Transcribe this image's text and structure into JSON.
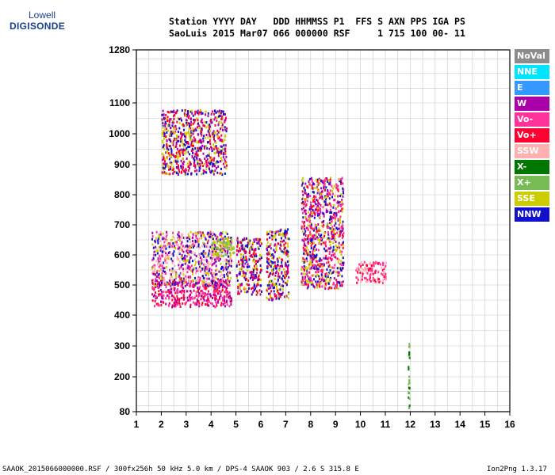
{
  "logo": {
    "top": "Lowell",
    "bottom": "DIGISONDE"
  },
  "header": {
    "line1": "Station YYYY DAY   DDD HHMMSS P1  FFS S AXN PPS IGA PS",
    "line2": "SaoLuis 2015 Mar07 066 000000 RSF     1 715 100 00- 11"
  },
  "footer": {
    "left": "SAAOK_2015066000000.RSF / 300fx256h 50 kHz 5.0 km / DPS-4 SAAOK 903 / 2.6 S 315.8 E",
    "right": "Ion2Png 1.3.17"
  },
  "legend": [
    {
      "label": "NoVal",
      "color": "#8c8c8c"
    },
    {
      "label": "NNE",
      "color": "#00e5ff"
    },
    {
      "label": "E",
      "color": "#3399ff"
    },
    {
      "label": "W",
      "color": "#aa00aa"
    },
    {
      "label": "Vo-",
      "color": "#ff3399"
    },
    {
      "label": "Vo+",
      "color": "#ff0033"
    },
    {
      "label": "SSW",
      "color": "#ffb0b0"
    },
    {
      "label": "X-",
      "color": "#007700"
    },
    {
      "label": "X+",
      "color": "#77bb55"
    },
    {
      "label": "SSE",
      "color": "#cccc00"
    },
    {
      "label": "NNW",
      "color": "#1111cc"
    }
  ],
  "chart_data": {
    "type": "scatter",
    "title": "",
    "xlabel": "",
    "ylabel": "",
    "xlim": [
      1,
      16
    ],
    "ylim": [
      80,
      1280
    ],
    "xticks": [
      "1",
      "2",
      "3",
      "4",
      "5",
      "6",
      "7",
      "8",
      "9",
      "10",
      "11",
      "12",
      "13",
      "14",
      "15",
      "16"
    ],
    "yticks": [
      "80",
      "200",
      "300",
      "400",
      "500",
      "600",
      "700",
      "800",
      "900",
      "1000",
      "1100",
      "1280"
    ],
    "yscale": "nonlinear (ionogram height scale)",
    "grid": true,
    "clusters": [
      {
        "x": [
          1.6,
          4.8
        ],
        "y": [
          430,
          520
        ],
        "colors": [
          "Vo+",
          "Vo-",
          "W"
        ]
      },
      {
        "x": [
          1.6,
          4.8
        ],
        "y": [
          500,
          680
        ],
        "colors": [
          "W",
          "Vo-",
          "NNW",
          "SSE",
          "SSW"
        ]
      },
      {
        "x": [
          4.0,
          4.9
        ],
        "y": [
          600,
          660
        ],
        "colors": [
          "SSE",
          "X+"
        ]
      },
      {
        "x": [
          5.0,
          6.0
        ],
        "y": [
          470,
          660
        ],
        "colors": [
          "Vo+",
          "W",
          "SSE",
          "NNW"
        ]
      },
      {
        "x": [
          6.2,
          7.1
        ],
        "y": [
          450,
          690
        ],
        "colors": [
          "Vo+",
          "W",
          "SSE",
          "NNW"
        ]
      },
      {
        "x": [
          7.6,
          9.3
        ],
        "y": [
          490,
          860
        ],
        "colors": [
          "Vo+",
          "Vo-",
          "W",
          "SSE",
          "NNW"
        ]
      },
      {
        "x": [
          9.8,
          11.0
        ],
        "y": [
          510,
          580
        ],
        "colors": [
          "Vo+",
          "Vo-",
          "SSW"
        ]
      },
      {
        "x": [
          2.0,
          4.6
        ],
        "y": [
          870,
          1080
        ],
        "colors": [
          "SSE",
          "W",
          "NNW",
          "Vo+"
        ]
      },
      {
        "x": [
          11.9,
          11.95
        ],
        "y": [
          90,
          310
        ],
        "colors": [
          "X-",
          "X+"
        ]
      }
    ]
  }
}
